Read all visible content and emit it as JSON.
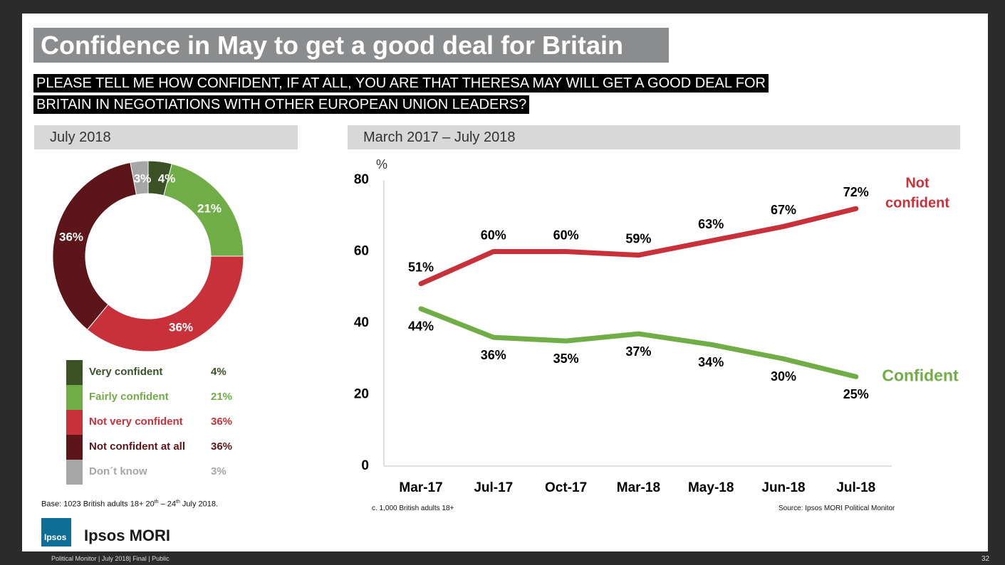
{
  "title": "Confidence in May to get a good deal for Britain",
  "question": {
    "line1": "PLEASE TELL ME HOW CONFIDENT, IF AT ALL, YOU ARE THAT THERESA MAY WILL GET A GOOD DEAL FOR",
    "line2": "BRITAIN IN NEGOTIATIONS WITH OTHER EUROPEAN UNION LEADERS?"
  },
  "left_panel_title": "July 2018",
  "right_panel_title": "March 2017 – July 2018",
  "legend": [
    {
      "label": "Very confident",
      "value": "4%",
      "color": "#3a5226"
    },
    {
      "label": "Fairly confident",
      "value": "21%",
      "color": "#70ad47"
    },
    {
      "label": "Not very confident",
      "value": "36%",
      "color": "#c9313a"
    },
    {
      "label": "Not confident at all",
      "value": "36%",
      "color": "#5c1519"
    },
    {
      "label": "Don´t know",
      "value": "3%",
      "color": "#a6a6a6"
    }
  ],
  "base_note": {
    "text": "Base:  1023 British adults 18+ 20",
    "sup1": "th",
    "mid": " – 24",
    "sup2": "th",
    "end": " July 2018."
  },
  "sample_note": "c. 1,000 British adults 18+",
  "source_note": "Source: Ipsos MORI Political Monitor",
  "footer": "Political Monitor | July 2018| Final | Public",
  "page_number": "32",
  "brand": {
    "logo_text": "Ipsos",
    "name": "Ipsos MORI"
  },
  "chart_data": [
    {
      "type": "pie",
      "style": "donut",
      "title": "July 2018",
      "labels": [
        "Very confident",
        "Fairly confident",
        "Not very confident",
        "Not confident at all",
        "Don´t know"
      ],
      "values": [
        4,
        21,
        36,
        36,
        3
      ],
      "data_labels": [
        "4%",
        "21%",
        "36%",
        "36%",
        "3%"
      ],
      "colors": [
        "#3a5226",
        "#70ad47",
        "#c9313a",
        "#5c1519",
        "#a6a6a6"
      ]
    },
    {
      "type": "line",
      "title": "March 2017 – July 2018",
      "ylabel": "%",
      "x": [
        "Mar-17",
        "Jul-17",
        "Oct-17",
        "Mar-18",
        "May-18",
        "Jun-18",
        "Jul-18"
      ],
      "ylim": [
        0,
        80
      ],
      "yticks": [
        0,
        20,
        40,
        60,
        80
      ],
      "grid": false,
      "series": [
        {
          "name": "Not confident",
          "name_lines": [
            "Not",
            "confident"
          ],
          "values": [
            51,
            60,
            60,
            59,
            63,
            67,
            72
          ],
          "color": "#c9313a"
        },
        {
          "name": "Confident",
          "name_lines": [
            "Confident"
          ],
          "values": [
            44,
            36,
            35,
            37,
            34,
            30,
            25
          ],
          "color": "#70ad47"
        }
      ]
    }
  ]
}
